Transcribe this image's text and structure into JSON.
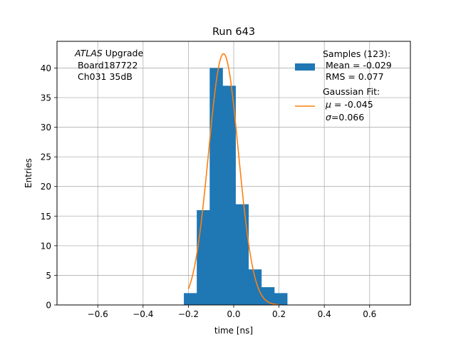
{
  "chart_data": {
    "type": "bar",
    "title": "Run 643",
    "xlabel": "time [ns]",
    "ylabel": "Entries",
    "xlim": [
      -0.78,
      0.78
    ],
    "ylim": [
      0,
      44.5
    ],
    "xticks": [
      -0.6,
      -0.4,
      -0.2,
      0.0,
      0.2,
      0.4,
      0.6
    ],
    "xtick_labels": [
      "−0.6",
      "−0.4",
      "−0.2",
      "0.0",
      "0.2",
      "0.4",
      "0.6"
    ],
    "yticks": [
      0,
      5,
      10,
      15,
      20,
      25,
      30,
      35,
      40
    ],
    "ytick_labels": [
      "0",
      "5",
      "10",
      "15",
      "20",
      "25",
      "30",
      "35",
      "40"
    ],
    "grid": true,
    "legend_position": "top-right",
    "histogram": {
      "bin_edges": [
        -0.22,
        -0.163,
        -0.106,
        -0.049,
        0.008,
        0.065,
        0.122,
        0.179,
        0.236
      ],
      "counts": [
        2,
        16,
        40,
        37,
        17,
        6,
        3,
        2
      ],
      "color": "#1f77b4"
    },
    "fit": {
      "type": "gaussian",
      "mu": -0.045,
      "sigma": 0.066,
      "amplitude": 42.4,
      "x_range": [
        -0.2,
        0.2
      ],
      "color": "#ff7f0e"
    },
    "annotation": {
      "line1_italic": "ATLAS",
      "line1_rest": " Upgrade",
      "line2": " Board187722",
      "line3": " Ch031 35dB"
    },
    "legend": {
      "hist_line1": "Samples (123):",
      "hist_line2": " Mean = -0.029",
      "hist_line3": " RMS = 0.077",
      "fit_line1": "Gaussian Fit:",
      "fit_mu_symbol": "μ",
      "fit_mu_text": " = -0.045",
      "fit_sigma_symbol": "σ",
      "fit_sigma_text": "=0.066"
    }
  }
}
